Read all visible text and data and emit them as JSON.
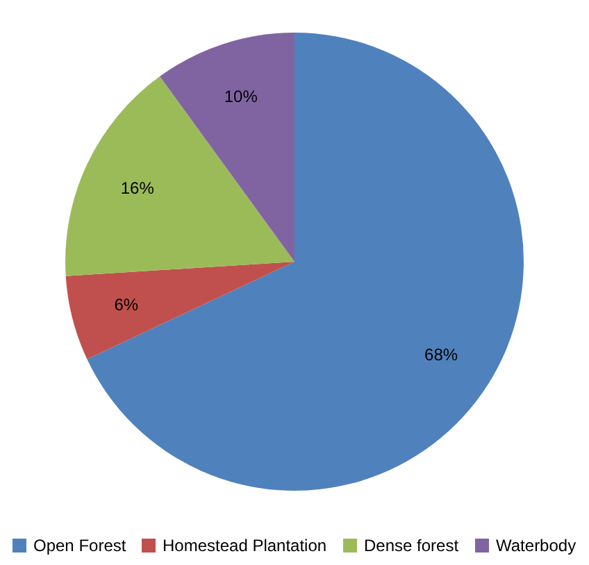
{
  "chart_data": {
    "type": "pie",
    "categories": [
      "Open Forest",
      "Homestead Plantation",
      "Dense forest",
      "Waterbody"
    ],
    "values": [
      68,
      6,
      16,
      10
    ],
    "colors": [
      "#4f81bd",
      "#c0504d",
      "#9bbb59",
      "#8064a2"
    ],
    "value_labels": [
      "68%",
      "6%",
      "16%",
      "10%"
    ],
    "legend": "bottom"
  }
}
